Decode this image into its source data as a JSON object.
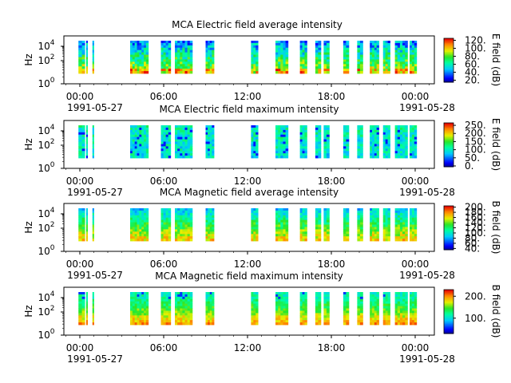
{
  "chart_data": [
    {
      "type": "heatmap",
      "title": "MCA  Electric field average intensity",
      "ylabel": "Hz",
      "yticks": [
        {
          "base": "10",
          "exp": "0"
        },
        {
          "base": "10",
          "exp": "2"
        },
        {
          "base": "10",
          "exp": "4"
        }
      ],
      "xticks": [
        "00:00",
        "06:00",
        "12:00",
        "18:00",
        "00:00"
      ],
      "date_labels": [
        "1991-05-27",
        "1991-05-28"
      ],
      "colorbar": {
        "label": "E field (dB)",
        "ticks": [
          "20.",
          "40.",
          "60.",
          "80.",
          "100.",
          "120."
        ],
        "range": [
          15,
          125
        ],
        "tick_values": [
          20,
          40,
          60,
          80,
          100,
          120
        ]
      },
      "style": "avg",
      "x_range": [
        "1991-05-27T00:00",
        "1991-05-28T00:00"
      ],
      "data_intervals_hours": [
        [
          23.8,
          24.0
        ],
        [
          24.0,
          24.2
        ],
        [
          0.8,
          1.0
        ],
        [
          3.6,
          4.9
        ],
        [
          5.8,
          6.5
        ],
        [
          6.8,
          8.1
        ],
        [
          9.0,
          9.6
        ],
        [
          12.2,
          12.7
        ],
        [
          14.0,
          14.8
        ],
        [
          15.7,
          16.2
        ],
        [
          16.8,
          17.2
        ],
        [
          17.4,
          17.8
        ],
        [
          18.8,
          19.2
        ],
        [
          19.8,
          20.2
        ],
        [
          20.7,
          21.4
        ],
        [
          21.7,
          22.2
        ],
        [
          22.6,
          23.4
        ],
        [
          23.6,
          24.0
        ]
      ]
    },
    {
      "type": "heatmap",
      "title": "MCA  Electric field maximum intensity",
      "ylabel": "Hz",
      "yticks": [
        {
          "base": "10",
          "exp": "0"
        },
        {
          "base": "10",
          "exp": "2"
        },
        {
          "base": "10",
          "exp": "4"
        }
      ],
      "xticks": [
        "00:00",
        "06:00",
        "12:00",
        "18:00",
        "00:00"
      ],
      "date_labels": [
        "1991-05-27",
        "1991-05-28"
      ],
      "colorbar": {
        "label": "E field (dB)",
        "ticks": [
          "0.",
          "50.",
          "100.",
          "150.",
          "200.",
          "250."
        ],
        "range": [
          -5,
          265
        ],
        "tick_values": [
          0,
          50,
          100,
          150,
          200,
          250
        ]
      },
      "style": "max",
      "x_range": [
        "1991-05-27T00:00",
        "1991-05-28T00:00"
      ]
    },
    {
      "type": "heatmap",
      "title": "MCA  Magnetic field average intensity",
      "ylabel": "Hz",
      "yticks": [
        {
          "base": "10",
          "exp": "0"
        },
        {
          "base": "10",
          "exp": "2"
        },
        {
          "base": "10",
          "exp": "4"
        }
      ],
      "xticks": [
        "00:00",
        "06:00",
        "12:00",
        "18:00",
        "00:00"
      ],
      "date_labels": [
        "1991-05-27",
        "1991-05-28"
      ],
      "colorbar": {
        "label": "B field (dB)",
        "ticks": [
          "40.",
          "60.",
          "80.",
          "100.",
          "120.",
          "140.",
          "160.",
          "180.",
          "200."
        ],
        "range": [
          35,
          205
        ],
        "tick_values": [
          40,
          60,
          80,
          100,
          120,
          140,
          160,
          180,
          200
        ]
      },
      "style": "bavg",
      "x_range": [
        "1991-05-27T00:00",
        "1991-05-28T00:00"
      ]
    },
    {
      "type": "heatmap",
      "title": "MCA  Magnetic field maximum intensity",
      "ylabel": "Hz",
      "yticks": [
        {
          "base": "10",
          "exp": "0"
        },
        {
          "base": "10",
          "exp": "2"
        },
        {
          "base": "10",
          "exp": "4"
        }
      ],
      "xticks": [
        "00:00",
        "06:00",
        "12:00",
        "18:00",
        "00:00"
      ],
      "date_labels": [
        "1991-05-27",
        "1991-05-28"
      ],
      "colorbar": {
        "label": "B field (dB)",
        "ticks": [
          "100.",
          "200."
        ],
        "range": [
          30,
          230
        ],
        "tick_values": [
          100,
          200
        ]
      },
      "style": "bmax",
      "x_range": [
        "1991-05-27T00:00",
        "1991-05-28T00:00"
      ]
    }
  ]
}
